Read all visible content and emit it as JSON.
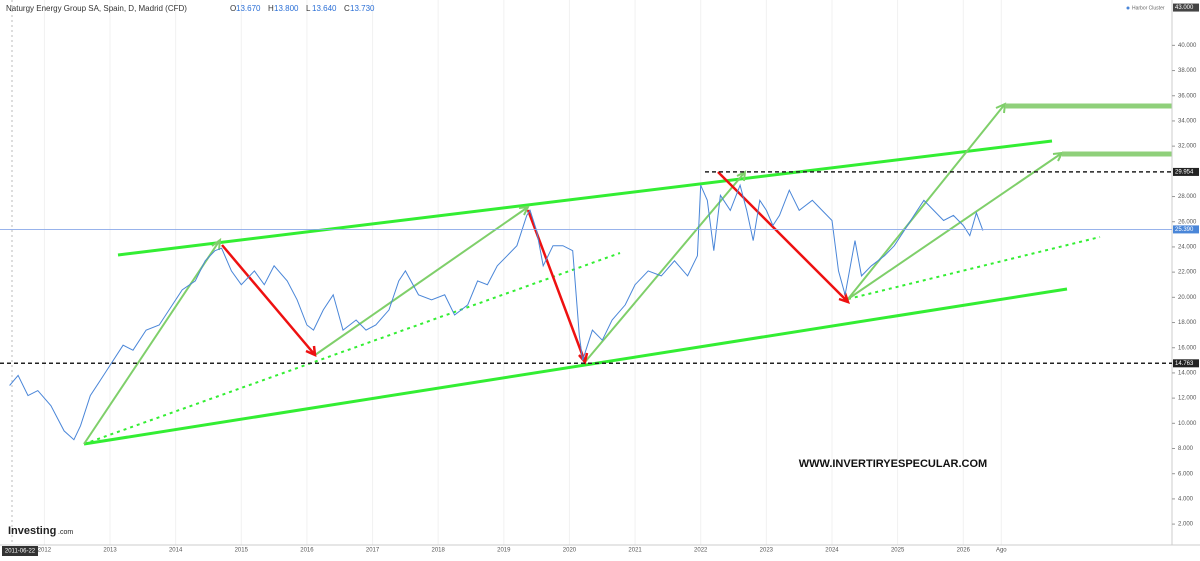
{
  "chart_data": {
    "type": "line",
    "title": "Naturgy Energy Group SA, Spain, D, Madrid (CFD)",
    "ohlc": [
      {
        "label": "O",
        "value": "13.670"
      },
      {
        "label": "H",
        "value": "13.800"
      },
      {
        "label": "L",
        "value": "13.640"
      },
      {
        "label": "C",
        "value": "13.730"
      }
    ],
    "legend": "Harbor Cluster",
    "watermark": "WWW.INVERTIRYESPECULAR.COM",
    "logo": "Investing",
    "logo_suffix": ".com",
    "cursor_date": "2011-06-22",
    "x": [
      2011.47,
      2011.6,
      2011.75,
      2011.9,
      2012.1,
      2012.3,
      2012.45,
      2012.55,
      2012.7,
      2012.85,
      2013.0,
      2013.2,
      2013.35,
      2013.55,
      2013.75,
      2013.9,
      2014.1,
      2014.3,
      2014.45,
      2014.6,
      2014.7,
      2014.85,
      2015.0,
      2015.2,
      2015.35,
      2015.5,
      2015.7,
      2015.85,
      2016.0,
      2016.1,
      2016.25,
      2016.4,
      2016.55,
      2016.75,
      2016.9,
      2017.05,
      2017.25,
      2017.4,
      2017.5,
      2017.7,
      2017.9,
      2018.1,
      2018.25,
      2018.45,
      2018.6,
      2018.75,
      2018.9,
      2019.05,
      2019.2,
      2019.35,
      2019.4,
      2019.5,
      2019.6,
      2019.75,
      2019.9,
      2020.05,
      2020.15,
      2020.2,
      2020.35,
      2020.5,
      2020.65,
      2020.85,
      2021.0,
      2021.2,
      2021.4,
      2021.6,
      2021.8,
      2021.95,
      2022.0,
      2022.1,
      2022.2,
      2022.3,
      2022.45,
      2022.6,
      2022.7,
      2022.8,
      2022.9,
      2023.0,
      2023.1,
      2023.2,
      2023.35,
      2023.5,
      2023.7,
      2023.85,
      2024.0,
      2024.1,
      2024.2,
      2024.35,
      2024.45,
      2024.6,
      2024.8,
      2024.95,
      2025.1,
      2025.25,
      2025.4,
      2025.55,
      2025.7,
      2025.85,
      2026.0,
      2026.1,
      2026.2,
      2026.3
    ],
    "series": [
      {
        "color": "#4a86d8",
        "values": [
          13.0,
          13.8,
          12.2,
          12.6,
          11.4,
          9.4,
          8.7,
          9.8,
          12.2,
          13.4,
          14.6,
          16.2,
          15.8,
          17.4,
          17.8,
          19.0,
          20.6,
          21.3,
          22.9,
          23.7,
          23.9,
          22.1,
          21.0,
          22.1,
          21.0,
          22.5,
          21.3,
          19.8,
          17.8,
          17.4,
          19.0,
          20.2,
          17.4,
          18.2,
          17.4,
          17.8,
          19.0,
          21.3,
          22.1,
          20.2,
          19.8,
          20.2,
          18.6,
          19.4,
          21.3,
          21.0,
          22.5,
          23.3,
          24.1,
          26.5,
          26.9,
          25.3,
          22.5,
          24.1,
          24.1,
          23.7,
          17.0,
          15.0,
          17.4,
          16.6,
          18.2,
          19.4,
          21.0,
          22.1,
          21.7,
          22.9,
          21.7,
          23.3,
          28.9,
          27.7,
          23.7,
          28.1,
          26.9,
          28.9,
          26.9,
          24.5,
          27.7,
          26.9,
          25.7,
          26.5,
          28.5,
          26.9,
          27.7,
          26.9,
          26.1,
          22.1,
          20.2,
          24.5,
          21.7,
          22.5,
          23.3,
          24.1,
          25.3,
          26.5,
          27.7,
          26.9,
          26.1,
          26.5,
          25.7,
          24.9,
          26.7,
          25.3
        ]
      }
    ],
    "xlim": [
      2011.4,
      2029.15
    ],
    "xticks": [
      2012,
      2013,
      2014,
      2015,
      2016,
      2017,
      2018,
      2019,
      2020,
      2021,
      2022,
      2023,
      2024,
      2025,
      2026,
      {
        "value": 2026.58,
        "label": "Ago"
      }
    ],
    "ylim": [
      0.5,
      43.6
    ],
    "yticks": [
      {
        "value": 2,
        "label": "2.000"
      },
      {
        "value": 4,
        "label": "4.000"
      },
      {
        "value": 6,
        "label": "6.000"
      },
      {
        "value": 8,
        "label": "8.000"
      },
      {
        "value": 10,
        "label": "10.000"
      },
      {
        "value": 12,
        "label": "12.000"
      },
      {
        "value": 14,
        "label": "14.000"
      },
      {
        "value": 16,
        "label": "16.000"
      },
      {
        "value": 18,
        "label": "18.000"
      },
      {
        "value": 20,
        "label": "20.000"
      },
      {
        "value": 22,
        "label": "22.000"
      },
      {
        "value": 24,
        "label": "24.000"
      },
      {
        "value": 26,
        "label": "26.000"
      },
      {
        "value": 28,
        "label": "28.000"
      },
      {
        "value": 32,
        "label": "32.000"
      },
      {
        "value": 34,
        "label": "34.000"
      },
      {
        "value": 36,
        "label": "36.000"
      },
      {
        "value": 38,
        "label": "38.000"
      },
      {
        "value": 40,
        "label": "40.000"
      }
    ],
    "price_markers": [
      {
        "value": 43,
        "label": "43.000"
      },
      {
        "value": 29.954,
        "label": "29.954"
      },
      {
        "value": 14.763,
        "label": "14.763"
      },
      {
        "value": 25.39,
        "label": "25.390"
      }
    ]
  }
}
